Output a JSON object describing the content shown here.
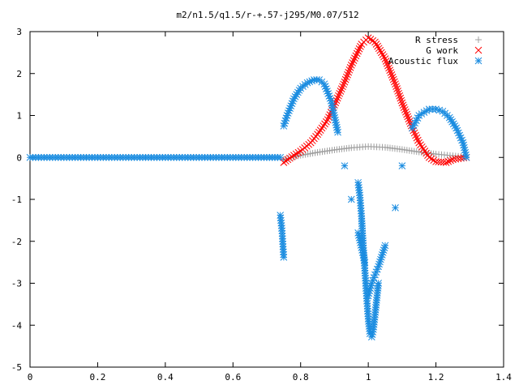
{
  "chart_data": {
    "type": "scatter",
    "title": "m2/n1.5/q1.5/r-+.57-j295/M0.07/512",
    "xlabel": "",
    "ylabel": "",
    "xlim": [
      0,
      1.4
    ],
    "ylim": [
      -5,
      3
    ],
    "x_ticks": [
      "0",
      "0.2",
      "0.4",
      "0.6",
      "0.8",
      "1",
      "1.2",
      "1.4"
    ],
    "y_ticks": [
      "3",
      "2",
      "1",
      "0",
      "-1",
      "-2",
      "-3",
      "-4",
      "-5"
    ],
    "grid": false,
    "legend_position": "top-right",
    "series": [
      {
        "name": "R stress",
        "marker": "plus",
        "color": "#a0a0a0",
        "x": [
          0.75,
          0.8,
          0.85,
          0.9,
          0.95,
          1.0,
          1.05,
          1.1,
          1.15,
          1.2,
          1.25,
          1.29
        ],
        "y": [
          -0.05,
          0.05,
          0.12,
          0.18,
          0.23,
          0.26,
          0.24,
          0.19,
          0.13,
          0.08,
          0.04,
          0.01
        ]
      },
      {
        "name": "G work",
        "marker": "cross",
        "color": "#ff0000",
        "x": [
          0.75,
          0.78,
          0.8,
          0.83,
          0.85,
          0.88,
          0.9,
          0.93,
          0.95,
          0.98,
          1.0,
          1.02,
          1.05,
          1.08,
          1.1,
          1.13,
          1.15,
          1.18,
          1.2,
          1.23,
          1.25,
          1.29
        ],
        "y": [
          -0.12,
          0.05,
          0.15,
          0.35,
          0.55,
          0.9,
          1.25,
          1.8,
          2.2,
          2.7,
          2.85,
          2.75,
          2.35,
          1.75,
          1.3,
          0.7,
          0.35,
          0.0,
          -0.1,
          -0.12,
          -0.05,
          0.0
        ]
      },
      {
        "name": "Acoustic flux",
        "marker": "star",
        "color": "#1a8ce0",
        "x": [
          0.75,
          0.76,
          0.78,
          0.8,
          0.82,
          0.84,
          0.855,
          0.87,
          0.89,
          0.91,
          0.93,
          0.95,
          0.97,
          0.99,
          1.0,
          1.01,
          1.02,
          1.03,
          1.05,
          1.08,
          1.1,
          1.13,
          1.15,
          1.18,
          1.2,
          1.22,
          1.24,
          1.26,
          1.28,
          1.29
        ],
        "y": [
          0.75,
          1.0,
          1.4,
          1.65,
          1.78,
          1.85,
          1.85,
          1.75,
          1.35,
          0.6,
          -0.2,
          -1.0,
          -1.8,
          -2.5,
          -3.3,
          -3.0,
          -2.8,
          -2.6,
          -2.1,
          -1.2,
          -0.2,
          0.7,
          1.0,
          1.15,
          1.15,
          1.1,
          0.95,
          0.7,
          0.35,
          0.0
        ]
      },
      {
        "name": "",
        "marker": "star",
        "color": "#1a8ce0",
        "x": [
          0.74,
          0.745,
          0.75,
          0.97,
          0.975,
          0.98,
          0.985,
          0.99,
          0.995,
          1.0,
          1.005,
          1.01,
          1.015,
          1.02,
          1.03
        ],
        "y": [
          -1.38,
          -1.75,
          -2.38,
          -0.6,
          -0.9,
          -1.4,
          -2.1,
          -2.7,
          -3.3,
          -3.85,
          -4.2,
          -4.28,
          -4.1,
          -3.75,
          -3.0
        ]
      },
      {
        "name": "",
        "marker": "star",
        "color": "#1a8ce0",
        "x": [
          0.0,
          0.05,
          0.1,
          0.15,
          0.2,
          0.25,
          0.3,
          0.35,
          0.4,
          0.45,
          0.5,
          0.55,
          0.6,
          0.65,
          0.7,
          0.74
        ],
        "y": [
          0,
          0,
          0,
          0,
          0,
          0,
          0,
          0,
          0,
          0,
          0,
          0,
          0,
          0,
          0,
          0
        ]
      }
    ]
  }
}
